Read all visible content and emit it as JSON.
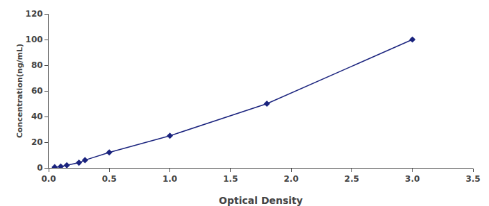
{
  "chart_data": {
    "type": "line",
    "xlabel": "Optical Density",
    "ylabel": "Concentration(ng/mL)",
    "x": [
      0.05,
      0.1,
      0.15,
      0.25,
      0.3,
      0.5,
      1.0,
      1.8,
      3.0
    ],
    "values": [
      0.5,
      1,
      2,
      4,
      6,
      12,
      25,
      50,
      100
    ],
    "color": "#1a237e",
    "marker": "diamond",
    "line_style": "solid",
    "xlim": [
      0,
      3.5
    ],
    "ylim": [
      0,
      120
    ],
    "xticks": [
      {
        "value": 0,
        "label": "0.0"
      },
      0.5,
      {
        "value": 1.0,
        "label": "1.0"
      },
      1.5,
      {
        "value": 2.0,
        "label": "2.0"
      },
      2.5,
      {
        "value": 3.0,
        "label": "3.0"
      },
      3.5
    ],
    "yticks": [
      0,
      20,
      40,
      60,
      80,
      100,
      120
    ],
    "grid": false
  }
}
